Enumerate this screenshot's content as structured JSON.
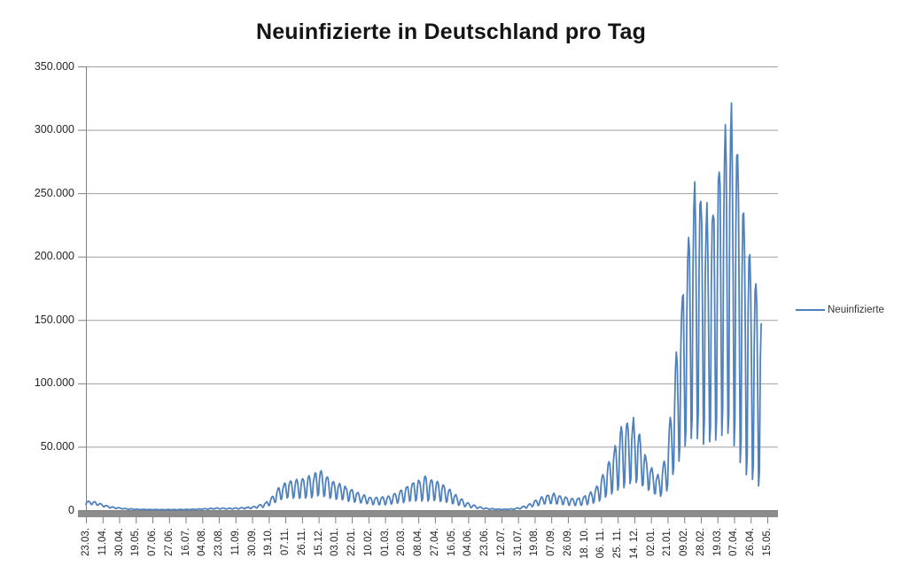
{
  "title": "Neuinfizierte in Deutschland pro Tag",
  "legend": {
    "label": "Neuinfizierte"
  },
  "colors": {
    "series": "#4F81BD",
    "gridline": "#A0A0A0",
    "axis": "#808080",
    "axis_bar": "#8C8C8C",
    "title_text": "#141414",
    "tick_text": "#262626"
  },
  "y_axis": {
    "tick_labels": [
      "350.000",
      "300.000",
      "250.000",
      "200.000",
      "150.000",
      "100.000",
      "50.000",
      "0"
    ]
  },
  "x_axis": {
    "tick_labels": [
      "23.03.",
      "11.04.",
      "30.04.",
      "19.05.",
      "07.06.",
      "27.06.",
      "16.07.",
      "04.08.",
      "23.08.",
      "11.09.",
      "30.09.",
      "19.10.",
      "07.11.",
      "26.11.",
      "15.12.",
      "03.01.",
      "22.01.",
      "10.02.",
      "01.03.",
      "20.03.",
      "08.04.",
      "27.04.",
      "16.05.",
      "04.06.",
      "23.06.",
      "12.07.",
      "31.07.",
      "19.08.",
      "07.09.",
      "26.09.",
      "18. 10.",
      "06. 11.",
      "25. 11.",
      "14. 12.",
      "02.01.",
      "21.01.",
      "09.02.",
      "28.02.",
      "19.03.",
      "07.04.",
      "26.04.",
      "15.05."
    ]
  },
  "chart_data": {
    "type": "line",
    "title": "Neuinfizierte in Deutschland pro Tag",
    "series_name": "Neuinfizierte",
    "ylim": [
      0,
      350000
    ],
    "y_tick_step": 50000,
    "grid": "horizontal",
    "legend_position": "right",
    "x_tick_labels_every_n_points": 19,
    "num_points": 773,
    "note": "Daily values approximated as envelope(day) * (1 + amplitude(day) * (weekday_shape[day mod 7] - 1)); day 0 = first category (a Monday). Envelope = estimated 7-day mean read from the plot.",
    "weekday_shape_mon_to_sun": [
      0.4,
      1.1,
      1.4,
      1.5,
      1.35,
      0.85,
      0.3
    ],
    "noise": 0.05,
    "min_value": 120,
    "envelope_7day_mean": [
      [
        0,
        6000
      ],
      [
        6,
        6000
      ],
      [
        13,
        5000
      ],
      [
        20,
        3600
      ],
      [
        30,
        2100
      ],
      [
        45,
        1050
      ],
      [
        60,
        620
      ],
      [
        75,
        440
      ],
      [
        90,
        380
      ],
      [
        105,
        430
      ],
      [
        120,
        560
      ],
      [
        135,
        900
      ],
      [
        150,
        1350
      ],
      [
        163,
        1250
      ],
      [
        178,
        1500
      ],
      [
        192,
        2200
      ],
      [
        205,
        4300
      ],
      [
        213,
        8000
      ],
      [
        221,
        14000
      ],
      [
        231,
        17500
      ],
      [
        245,
        18000
      ],
      [
        257,
        19500
      ],
      [
        267,
        23500
      ],
      [
        276,
        19500
      ],
      [
        285,
        16500
      ],
      [
        295,
        14500
      ],
      [
        305,
        12000
      ],
      [
        316,
        9300
      ],
      [
        326,
        7600
      ],
      [
        336,
        7400
      ],
      [
        346,
        8300
      ],
      [
        356,
        10500
      ],
      [
        366,
        13500
      ],
      [
        376,
        16200
      ],
      [
        388,
        18500
      ],
      [
        398,
        17000
      ],
      [
        408,
        14500
      ],
      [
        418,
        10800
      ],
      [
        428,
        6800
      ],
      [
        438,
        3900
      ],
      [
        448,
        2200
      ],
      [
        458,
        1200
      ],
      [
        468,
        760
      ],
      [
        478,
        600
      ],
      [
        487,
        800
      ],
      [
        496,
        1600
      ],
      [
        506,
        3300
      ],
      [
        515,
        6100
      ],
      [
        525,
        8800
      ],
      [
        536,
        9700
      ],
      [
        546,
        8100
      ],
      [
        556,
        6700
      ],
      [
        566,
        7400
      ],
      [
        576,
        9800
      ],
      [
        586,
        15000
      ],
      [
        596,
        25000
      ],
      [
        606,
        37000
      ],
      [
        616,
        49000
      ],
      [
        624,
        52000
      ],
      [
        632,
        43000
      ],
      [
        640,
        32000
      ],
      [
        648,
        24000
      ],
      [
        655,
        19500
      ],
      [
        663,
        30000
      ],
      [
        670,
        60000
      ],
      [
        678,
        100000
      ],
      [
        686,
        140000
      ],
      [
        694,
        168000
      ],
      [
        702,
        170000
      ],
      [
        710,
        158000
      ],
      [
        718,
        165000
      ],
      [
        726,
        190000
      ],
      [
        733,
        205000
      ],
      [
        738,
        208000
      ],
      [
        745,
        185000
      ],
      [
        752,
        152000
      ],
      [
        760,
        128000
      ],
      [
        766,
        118000
      ],
      [
        772,
        100000
      ]
    ],
    "weekly_amplitude": [
      [
        0,
        0.35
      ],
      [
        60,
        0.45
      ],
      [
        150,
        0.5
      ],
      [
        205,
        0.6
      ],
      [
        267,
        0.72
      ],
      [
        320,
        0.6
      ],
      [
        356,
        0.7
      ],
      [
        388,
        0.85
      ],
      [
        430,
        0.7
      ],
      [
        470,
        0.5
      ],
      [
        530,
        0.65
      ],
      [
        580,
        0.75
      ],
      [
        616,
        0.9
      ],
      [
        648,
        0.6
      ],
      [
        663,
        0.8
      ],
      [
        686,
        0.9
      ],
      [
        702,
        0.95
      ],
      [
        730,
        1.0
      ],
      [
        750,
        1.12
      ],
      [
        772,
        1.2
      ]
    ]
  }
}
